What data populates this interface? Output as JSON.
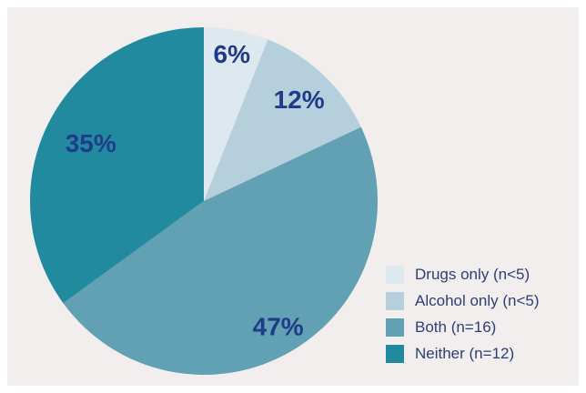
{
  "chart_data": {
    "type": "pie",
    "title": "",
    "slices": [
      {
        "label": "Drugs only (n<5)",
        "value": 6,
        "display": "6%",
        "color": "#dde9ef"
      },
      {
        "label": "Alcohol only (n<5)",
        "value": 12,
        "display": "12%",
        "color": "#b6cfdc"
      },
      {
        "label": "Both (n=16)",
        "value": 47,
        "display": "47%",
        "color": "#62a1b4"
      },
      {
        "label": "Neither (n=12)",
        "value": 35,
        "display": "35%",
        "color": "#228a9f"
      }
    ],
    "legend_position": "bottom-right",
    "label_color": "#1f3b8a",
    "background": "#f2eeed"
  }
}
